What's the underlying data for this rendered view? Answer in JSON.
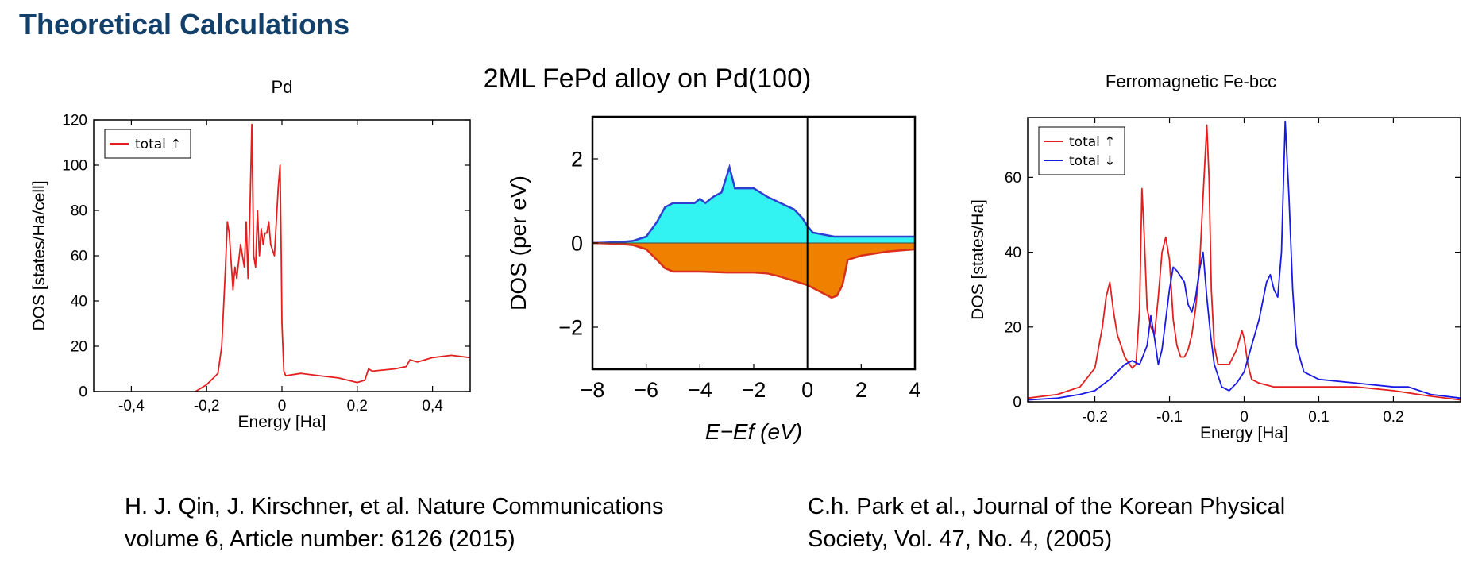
{
  "slide": {
    "title": "Theoretical Calculations"
  },
  "citations": [
    {
      "lines": [
        "H. J. Qin, J. Kirschner, et al. Nature Communications",
        "volume 6, Article number: 6126 (2015)"
      ]
    },
    {
      "lines": [
        "C.h. Park et al., Journal of the Korean Physical",
        "Society, Vol. 47, No. 4,  (2005)"
      ]
    }
  ],
  "colors": {
    "title": "#12406b",
    "red": "#e41f1f",
    "blue": "#1a1ae6",
    "cyan": "#33f2f2",
    "orange": "#f08000",
    "line_blue": "#2f3fd0",
    "line_red": "#d8301c"
  },
  "chart_data": [
    {
      "type": "line",
      "title": "Pd",
      "xlabel": "Energy [Ha]",
      "ylabel": "DOS [states/Ha/cell]",
      "xlim": [
        -0.5,
        0.5
      ],
      "ylim": [
        0,
        120
      ],
      "xticks": [
        -0.4,
        -0.2,
        0,
        0.2,
        0.4
      ],
      "xtick_labels": [
        "-0,4",
        "-0,2",
        "0",
        "0,2",
        "0,4"
      ],
      "yticks": [
        0,
        20,
        40,
        60,
        80,
        100,
        120
      ],
      "ytick_labels": [
        "0",
        "20",
        "40",
        "60",
        "80",
        "100",
        "120"
      ],
      "legend": "top-left",
      "series": [
        {
          "name": "total ↑",
          "color": "#e41f1f",
          "x": [
            -0.23,
            -0.2,
            -0.17,
            -0.16,
            -0.15,
            -0.145,
            -0.14,
            -0.13,
            -0.125,
            -0.12,
            -0.11,
            -0.1,
            -0.095,
            -0.09,
            -0.085,
            -0.08,
            -0.075,
            -0.07,
            -0.065,
            -0.06,
            -0.055,
            -0.05,
            -0.045,
            -0.04,
            -0.035,
            -0.03,
            -0.02,
            -0.01,
            -0.005,
            -0.002,
            0.0,
            0.005,
            0.01,
            0.05,
            0.1,
            0.15,
            0.2,
            0.22,
            0.23,
            0.24,
            0.3,
            0.33,
            0.34,
            0.36,
            0.4,
            0.45,
            0.5
          ],
          "y": [
            0,
            3,
            8,
            20,
            55,
            75,
            70,
            45,
            55,
            50,
            65,
            55,
            75,
            50,
            80,
            118,
            60,
            55,
            80,
            60,
            72,
            65,
            70,
            70,
            75,
            65,
            60,
            90,
            100,
            60,
            30,
            9,
            7,
            8,
            7,
            6,
            4,
            5,
            10,
            9,
            10,
            11,
            14,
            13,
            15,
            16,
            15
          ]
        }
      ]
    },
    {
      "type": "area",
      "title": "2ML FePd alloy on Pd(100)",
      "xlabel": "E−Ef (eV)",
      "ylabel": "DOS (per eV)",
      "xlim": [
        -8,
        4
      ],
      "ylim": [
        -3,
        3
      ],
      "xticks": [
        -8,
        -6,
        -4,
        -2,
        0,
        2,
        4
      ],
      "xtick_labels": [
        "−8",
        "−6",
        "−4",
        "−2",
        "0",
        "2",
        "4"
      ],
      "yticks": [
        -2,
        0,
        2
      ],
      "ytick_labels": [
        "−2",
        "0",
        "2"
      ],
      "series": [
        {
          "name": "",
          "color": "#33f2f2",
          "x": [
            -8,
            -7,
            -6.5,
            -6,
            -5.6,
            -5.3,
            -5,
            -4.6,
            -4.2,
            -4,
            -3.8,
            -3.5,
            -3.2,
            -3.0,
            -2.9,
            -2.7,
            -2.4,
            -2,
            -1.5,
            -1,
            -0.5,
            -0.2,
            0,
            0.2,
            1,
            2,
            3,
            4
          ],
          "y": [
            0,
            0.02,
            0.05,
            0.15,
            0.5,
            0.85,
            0.95,
            0.95,
            0.95,
            1.05,
            0.95,
            1.1,
            1.2,
            1.6,
            1.8,
            1.3,
            1.3,
            1.3,
            1.1,
            0.95,
            0.8,
            0.6,
            0.4,
            0.25,
            0.15,
            0.15,
            0.15,
            0.15
          ]
        },
        {
          "name": "",
          "color": "#f08000",
          "x": [
            -8,
            -7,
            -6.5,
            -6,
            -5.6,
            -5.3,
            -5,
            -4.5,
            -4,
            -3,
            -2,
            -1.5,
            -1,
            -0.5,
            0,
            0.3,
            0.6,
            0.9,
            1.1,
            1.3,
            1.5,
            2,
            2.5,
            3,
            4
          ],
          "y": [
            0,
            -0.02,
            -0.05,
            -0.15,
            -0.4,
            -0.6,
            -0.68,
            -0.68,
            -0.68,
            -0.7,
            -0.7,
            -0.72,
            -0.8,
            -0.9,
            -1.0,
            -1.1,
            -1.2,
            -1.3,
            -1.25,
            -1.0,
            -0.4,
            -0.3,
            -0.25,
            -0.2,
            -0.15
          ]
        }
      ]
    },
    {
      "type": "line",
      "title": "Ferromagnetic Fe-bcc",
      "xlabel": "Energy [Ha]",
      "ylabel": "DOS [states/Ha]",
      "xlim": [
        -0.29,
        0.29
      ],
      "ylim": [
        0,
        76
      ],
      "xticks": [
        -0.2,
        -0.1,
        0,
        0.1,
        0.2
      ],
      "xtick_labels": [
        "-0.2",
        "-0.1",
        "0",
        "0.1",
        "0.2"
      ],
      "yticks": [
        0,
        20,
        40,
        60
      ],
      "ytick_labels": [
        "0",
        "20",
        "40",
        "60"
      ],
      "legend": "top-left",
      "series": [
        {
          "name": "total ↑",
          "color": "#e41f1f",
          "x": [
            -0.29,
            -0.25,
            -0.22,
            -0.2,
            -0.19,
            -0.185,
            -0.18,
            -0.175,
            -0.17,
            -0.16,
            -0.15,
            -0.145,
            -0.14,
            -0.137,
            -0.134,
            -0.13,
            -0.125,
            -0.12,
            -0.115,
            -0.11,
            -0.105,
            -0.1,
            -0.095,
            -0.09,
            -0.085,
            -0.08,
            -0.075,
            -0.07,
            -0.065,
            -0.06,
            -0.055,
            -0.05,
            -0.047,
            -0.044,
            -0.04,
            -0.035,
            -0.03,
            -0.02,
            -0.01,
            -0.003,
            0,
            0.005,
            0.01,
            0.02,
            0.04,
            0.1,
            0.15,
            0.2,
            0.25,
            0.29
          ],
          "y": [
            1,
            2,
            4,
            9,
            20,
            28,
            32,
            24,
            18,
            12,
            9,
            10,
            25,
            57,
            45,
            25,
            20,
            18,
            28,
            40,
            44,
            38,
            22,
            15,
            12,
            12,
            14,
            18,
            25,
            35,
            55,
            74,
            60,
            30,
            15,
            10,
            10,
            10,
            14,
            19,
            17,
            10,
            6,
            5,
            4,
            4,
            4,
            3,
            1.5,
            0.5
          ]
        },
        {
          "name": "total ↓",
          "color": "#1a1ae6",
          "x": [
            -0.29,
            -0.25,
            -0.22,
            -0.2,
            -0.18,
            -0.16,
            -0.15,
            -0.14,
            -0.13,
            -0.125,
            -0.12,
            -0.115,
            -0.11,
            -0.1,
            -0.095,
            -0.09,
            -0.08,
            -0.075,
            -0.07,
            -0.065,
            -0.06,
            -0.055,
            -0.05,
            -0.045,
            -0.04,
            -0.03,
            -0.02,
            -0.01,
            0,
            0.01,
            0.02,
            0.03,
            0.035,
            0.04,
            0.045,
            0.05,
            0.055,
            0.06,
            0.065,
            0.07,
            0.08,
            0.1,
            0.15,
            0.2,
            0.22,
            0.25,
            0.29
          ],
          "y": [
            0.5,
            1,
            2,
            3,
            6,
            10,
            11,
            10,
            15,
            23,
            17,
            10,
            14,
            30,
            36,
            35,
            32,
            26,
            24,
            28,
            35,
            40,
            28,
            18,
            10,
            4,
            3,
            5,
            8,
            15,
            22,
            32,
            34,
            30,
            28,
            40,
            75,
            55,
            30,
            15,
            8,
            6,
            5,
            4,
            4,
            2,
            1
          ]
        }
      ]
    }
  ]
}
